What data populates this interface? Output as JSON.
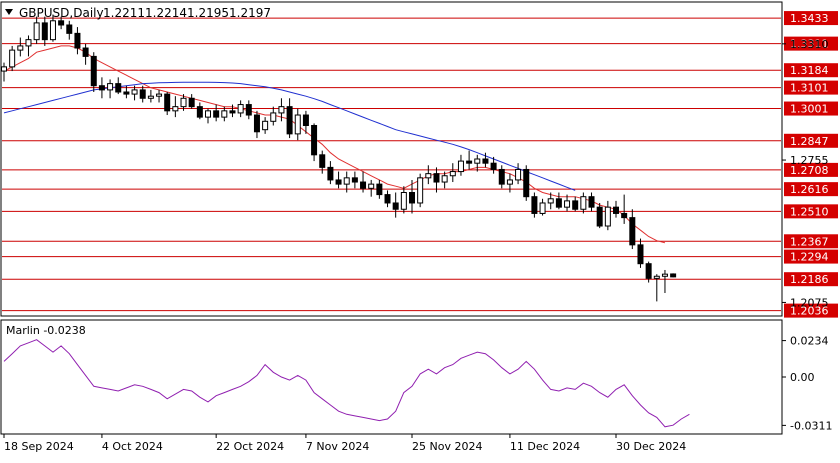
{
  "chart_data": {
    "type": "candlestick",
    "symbol": "GBPUSD,Daily",
    "ohlc_header": [
      "1.2211",
      "1.2214",
      "1.2195",
      "1.2197"
    ],
    "x_tick_labels": [
      "18 Sep 2024",
      "4 Oct 2024",
      "22 Oct 2024",
      "7 Nov 2024",
      "25 Nov 2024",
      "11 Dec 2024",
      "30 Dec 2024"
    ],
    "x_tick_index": [
      0,
      12,
      26,
      37,
      50,
      62,
      75
    ],
    "ylim": [
      1.2015,
      1.3505
    ],
    "y_tick_labels": [
      "1.3310",
      "1.2755",
      "1.2075"
    ],
    "horizontal_levels": [
      {
        "value": 1.3433,
        "label": "1.3433"
      },
      {
        "value": 1.3311,
        "label": "1.3311"
      },
      {
        "value": 1.3184,
        "label": "1.3184"
      },
      {
        "value": 1.3101,
        "label": "1.3101"
      },
      {
        "value": 1.3001,
        "label": "1.3001"
      },
      {
        "value": 1.2847,
        "label": "1.2847"
      },
      {
        "value": 1.2708,
        "label": "1.2708"
      },
      {
        "value": 1.2616,
        "label": "1.2616"
      },
      {
        "value": 1.251,
        "label": "1.2510"
      },
      {
        "value": 1.2367,
        "label": "1.2367"
      },
      {
        "value": 1.2294,
        "label": "1.2294"
      },
      {
        "value": 1.2186,
        "label": "1.2186"
      },
      {
        "value": 1.2036,
        "label": "1.2036"
      }
    ],
    "candles": [
      [
        1.318,
        1.322,
        1.313,
        1.32
      ],
      [
        1.32,
        1.33,
        1.318,
        1.328
      ],
      [
        1.328,
        1.334,
        1.325,
        1.33
      ],
      [
        1.33,
        1.335,
        1.325,
        1.333
      ],
      [
        1.333,
        1.344,
        1.331,
        1.341
      ],
      [
        1.341,
        1.344,
        1.33,
        1.333
      ],
      [
        1.333,
        1.345,
        1.332,
        1.342
      ],
      [
        1.342,
        1.344,
        1.338,
        1.34
      ],
      [
        1.34,
        1.342,
        1.333,
        1.336
      ],
      [
        1.336,
        1.339,
        1.326,
        1.329
      ],
      [
        1.329,
        1.331,
        1.321,
        1.325
      ],
      [
        1.325,
        1.327,
        1.308,
        1.311
      ],
      [
        1.311,
        1.315,
        1.305,
        1.309
      ],
      [
        1.309,
        1.314,
        1.305,
        1.312
      ],
      [
        1.312,
        1.315,
        1.307,
        1.308
      ],
      [
        1.308,
        1.311,
        1.305,
        1.307
      ],
      [
        1.307,
        1.311,
        1.304,
        1.309
      ],
      [
        1.309,
        1.311,
        1.303,
        1.305
      ],
      [
        1.305,
        1.309,
        1.303,
        1.306
      ],
      [
        1.306,
        1.309,
        1.303,
        1.307
      ],
      [
        1.307,
        1.308,
        1.297,
        1.299
      ],
      [
        1.299,
        1.306,
        1.296,
        1.301
      ],
      [
        1.301,
        1.307,
        1.299,
        1.305
      ],
      [
        1.305,
        1.307,
        1.3,
        1.301
      ],
      [
        1.301,
        1.303,
        1.295,
        1.296
      ],
      [
        1.296,
        1.3,
        1.293,
        1.299
      ],
      [
        1.299,
        1.302,
        1.294,
        1.296
      ],
      [
        1.296,
        1.301,
        1.294,
        1.299
      ],
      [
        1.299,
        1.302,
        1.296,
        1.298
      ],
      [
        1.298,
        1.304,
        1.296,
        1.302
      ],
      [
        1.302,
        1.304,
        1.295,
        1.297
      ],
      [
        1.297,
        1.299,
        1.286,
        1.289
      ],
      [
        1.29,
        1.296,
        1.288,
        1.294
      ],
      [
        1.294,
        1.301,
        1.292,
        1.298
      ],
      [
        1.298,
        1.305,
        1.294,
        1.301
      ],
      [
        1.301,
        1.305,
        1.286,
        1.288
      ],
      [
        1.288,
        1.3,
        1.285,
        1.297
      ],
      [
        1.297,
        1.299,
        1.288,
        1.292
      ],
      [
        1.292,
        1.293,
        1.275,
        1.278
      ],
      [
        1.278,
        1.28,
        1.269,
        1.272
      ],
      [
        1.272,
        1.275,
        1.264,
        1.266
      ],
      [
        1.266,
        1.27,
        1.262,
        1.264
      ],
      [
        1.264,
        1.27,
        1.26,
        1.267
      ],
      [
        1.267,
        1.27,
        1.262,
        1.265
      ],
      [
        1.265,
        1.27,
        1.26,
        1.262
      ],
      [
        1.262,
        1.266,
        1.258,
        1.264
      ],
      [
        1.264,
        1.266,
        1.257,
        1.259
      ],
      [
        1.259,
        1.261,
        1.253,
        1.255
      ],
      [
        1.255,
        1.26,
        1.248,
        1.252
      ],
      [
        1.252,
        1.263,
        1.25,
        1.26
      ],
      [
        1.26,
        1.266,
        1.25,
        1.255
      ],
      [
        1.255,
        1.269,
        1.253,
        1.267
      ],
      [
        1.267,
        1.273,
        1.264,
        1.269
      ],
      [
        1.269,
        1.272,
        1.26,
        1.265
      ],
      [
        1.265,
        1.27,
        1.262,
        1.268
      ],
      [
        1.268,
        1.274,
        1.265,
        1.27
      ],
      [
        1.27,
        1.278,
        1.268,
        1.275
      ],
      [
        1.275,
        1.28,
        1.271,
        1.274
      ],
      [
        1.274,
        1.278,
        1.27,
        1.276
      ],
      [
        1.276,
        1.279,
        1.272,
        1.274
      ],
      [
        1.274,
        1.277,
        1.269,
        1.271
      ],
      [
        1.271,
        1.273,
        1.262,
        1.264
      ],
      [
        1.264,
        1.269,
        1.26,
        1.266
      ],
      [
        1.266,
        1.274,
        1.264,
        1.271
      ],
      [
        1.271,
        1.273,
        1.256,
        1.258
      ],
      [
        1.258,
        1.26,
        1.248,
        1.25
      ],
      [
        1.25,
        1.257,
        1.249,
        1.255
      ],
      [
        1.255,
        1.26,
        1.252,
        1.257
      ],
      [
        1.257,
        1.26,
        1.252,
        1.253
      ],
      [
        1.253,
        1.259,
        1.251,
        1.256
      ],
      [
        1.256,
        1.258,
        1.251,
        1.252
      ],
      [
        1.252,
        1.26,
        1.25,
        1.258
      ],
      [
        1.258,
        1.26,
        1.251,
        1.253
      ],
      [
        1.253,
        1.255,
        1.243,
        1.244
      ],
      [
        1.244,
        1.256,
        1.242,
        1.253
      ],
      [
        1.253,
        1.256,
        1.248,
        1.25
      ],
      [
        1.25,
        1.259,
        1.245,
        1.248
      ],
      [
        1.248,
        1.252,
        1.233,
        1.235
      ],
      [
        1.235,
        1.238,
        1.224,
        1.226
      ],
      [
        1.226,
        1.227,
        1.217,
        1.219
      ],
      [
        1.219,
        1.221,
        1.208,
        1.22
      ],
      [
        1.22,
        1.223,
        1.212,
        1.221
      ],
      [
        1.2211,
        1.2214,
        1.2195,
        1.2197
      ]
    ],
    "series": [
      {
        "type": "line",
        "color": "#e03030",
        "values": [
          1.318,
          1.32,
          1.322,
          1.324,
          1.327,
          1.328,
          1.329,
          1.33,
          1.33,
          1.329,
          1.327,
          1.324,
          1.322,
          1.32,
          1.318,
          1.316,
          1.314,
          1.312,
          1.31,
          1.309,
          1.308,
          1.307,
          1.306,
          1.305,
          1.304,
          1.303,
          1.302,
          1.301,
          1.301,
          1.3,
          1.299,
          1.298,
          1.297,
          1.297,
          1.296,
          1.295,
          1.292,
          1.289,
          1.286,
          1.283,
          1.279,
          1.276,
          1.274,
          1.272,
          1.27,
          1.268,
          1.266,
          1.264,
          1.263,
          1.262,
          1.264,
          1.266,
          1.268,
          1.269,
          1.269,
          1.27,
          1.27,
          1.271,
          1.272,
          1.272,
          1.271,
          1.27,
          1.269,
          1.267,
          1.265,
          1.262,
          1.26,
          1.259,
          1.258,
          1.258,
          1.258,
          1.257,
          1.256,
          1.254,
          1.253,
          1.252,
          1.249,
          1.245,
          1.242,
          1.239,
          1.237,
          1.236
        ]
      },
      {
        "type": "line",
        "color": "#2030d0",
        "values": [
          1.298,
          1.299,
          1.3,
          1.301,
          1.302,
          1.303,
          1.304,
          1.305,
          1.306,
          1.307,
          1.308,
          1.309,
          1.3095,
          1.31,
          1.3105,
          1.311,
          1.3115,
          1.312,
          1.3122,
          1.3124,
          1.3125,
          1.3126,
          1.3127,
          1.3127,
          1.3127,
          1.3127,
          1.3126,
          1.3125,
          1.3123,
          1.312,
          1.3115,
          1.311,
          1.3105,
          1.3098,
          1.309,
          1.308,
          1.307,
          1.306,
          1.3048,
          1.3035,
          1.302,
          1.3005,
          1.299,
          1.2975,
          1.296,
          1.2945,
          1.293,
          1.2915,
          1.29,
          1.289,
          1.288,
          1.287,
          1.286,
          1.285,
          1.284,
          1.283,
          1.2818,
          1.2805,
          1.279,
          1.2775,
          1.276,
          1.2745,
          1.273,
          1.2715,
          1.27,
          1.2685,
          1.267,
          1.2655,
          1.264,
          1.2625,
          1.261
        ]
      }
    ],
    "oscillator": {
      "label": "Marlin -0.0238",
      "ylim": [
        -0.036,
        0.036
      ],
      "tick_labels": [
        "0.0234",
        "0.00",
        "-0.0311"
      ],
      "tick_values": [
        0.0234,
        0.0,
        -0.0311
      ],
      "color": "#9020b0",
      "values": [
        0.01,
        0.015,
        0.02,
        0.022,
        0.024,
        0.02,
        0.016,
        0.02,
        0.015,
        0.008,
        0.001,
        -0.006,
        -0.007,
        -0.008,
        -0.009,
        -0.007,
        -0.005,
        -0.006,
        -0.008,
        -0.01,
        -0.014,
        -0.011,
        -0.008,
        -0.009,
        -0.013,
        -0.016,
        -0.012,
        -0.01,
        -0.008,
        -0.006,
        -0.003,
        0.001,
        0.008,
        0.003,
        0.0,
        -0.002,
        0.001,
        -0.002,
        -0.01,
        -0.014,
        -0.018,
        -0.022,
        -0.024,
        -0.025,
        -0.026,
        -0.027,
        -0.028,
        -0.027,
        -0.022,
        -0.01,
        -0.006,
        0.002,
        0.005,
        0.002,
        0.006,
        0.008,
        0.012,
        0.014,
        0.016,
        0.015,
        0.011,
        0.006,
        0.002,
        0.005,
        0.01,
        0.005,
        -0.002,
        -0.008,
        -0.009,
        -0.007,
        -0.008,
        -0.004,
        -0.006,
        -0.01,
        -0.013,
        -0.008,
        -0.005,
        -0.012,
        -0.018,
        -0.023,
        -0.026,
        -0.032,
        -0.031,
        -0.027,
        -0.024
      ]
    }
  }
}
